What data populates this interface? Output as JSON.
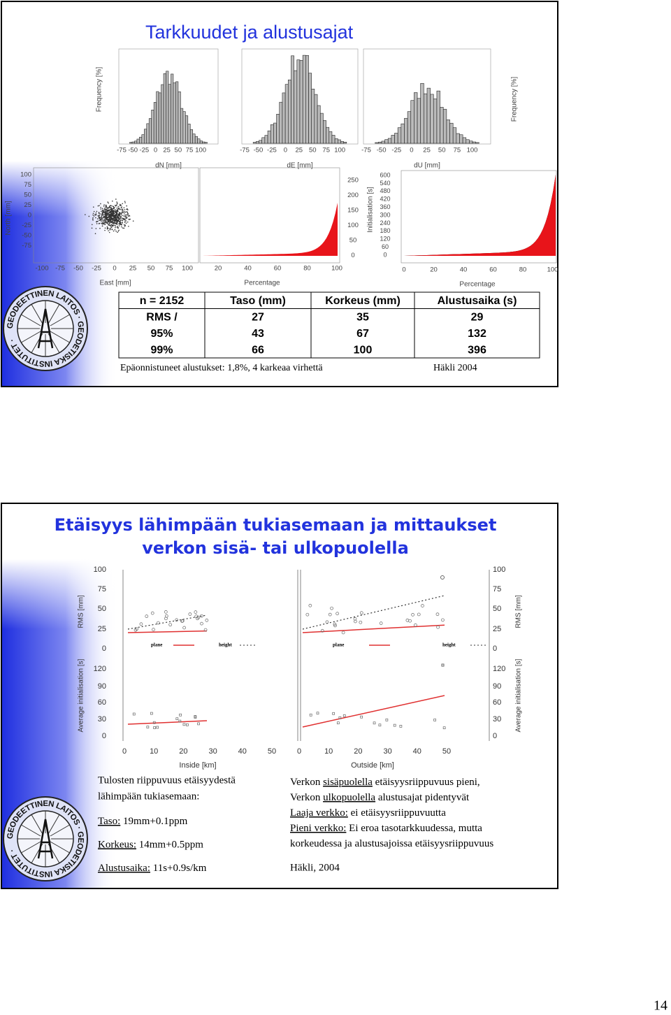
{
  "slide1": {
    "title": "Tarkkuudet ja alustusajat",
    "logo_text": "GEODEETTINEN LAITOS · GEODETISKA INSTITUTET ·",
    "histograms": {
      "x_ticks": [
        "-75",
        "-50",
        "-25",
        "0",
        "25",
        "50",
        "75",
        "100"
      ],
      "x_labels": [
        "dN [mm]",
        "dE [mm]",
        "dU [mm]"
      ],
      "y_label": "Frequency [%]"
    },
    "scatter": {
      "y_label": "North [mm]",
      "x_label": "East [mm]",
      "y_ticks": [
        "100",
        "75",
        "50",
        "25",
        "0",
        "-25",
        "-50",
        "-75"
      ],
      "x_ticks": [
        "-100",
        "-75",
        "-50",
        "-25",
        "0",
        "25",
        "50",
        "75",
        "100"
      ]
    },
    "init_left": {
      "x_label": "Percentage",
      "x_ticks": [
        "20",
        "40",
        "60",
        "80",
        "100"
      ],
      "y_label": "Initialisation [s]",
      "y_ticks": [
        "250",
        "200",
        "150",
        "100",
        "50",
        "0"
      ]
    },
    "init_right": {
      "x_label": "Percentage",
      "x_ticks": [
        "0",
        "20",
        "40",
        "60",
        "80",
        "100"
      ],
      "y_ticks": [
        "600",
        "540",
        "480",
        "420",
        "360",
        "300",
        "240",
        "180",
        "120",
        "60",
        "0"
      ]
    },
    "table": {
      "header": [
        "n = 2152",
        "Taso (mm)",
        "Korkeus (mm)",
        "Alustusaika (s)"
      ],
      "rows": [
        [
          "RMS /",
          "27",
          "35",
          "29"
        ],
        [
          "95%",
          "43",
          "67",
          "132"
        ],
        [
          "99%",
          "66",
          "100",
          "396"
        ]
      ]
    },
    "note": "Epäonnistuneet alustukset: 1,8%,  4 karkeaa virhettä",
    "source": "Häkli 2004"
  },
  "slide2": {
    "title_lines": [
      "Etäisyys lähimpään tukiasemaan ja mittaukset",
      "verkon sisä- tai ulkopuolella"
    ],
    "logo_text": "GEODEETTINEN LAITOS · GEODETISKA INSTITUTET ·",
    "figure": {
      "rms_ticks": [
        "100",
        "75",
        "50",
        "25",
        "0"
      ],
      "init_ticks": [
        "120",
        "90",
        "60",
        "30",
        "0"
      ],
      "x_ticks": [
        "0",
        "10",
        "20",
        "30",
        "40",
        "50"
      ],
      "rms_label": "RMS [mm]",
      "init_label": "Average initialisation [s]",
      "x_labels": [
        "Inside [km]",
        "Outside [km]"
      ],
      "legend": [
        "plane",
        "height"
      ]
    },
    "left_text": {
      "intro": [
        "Tulosten riippuvuus etäisyydestä",
        "lähimpään tukiasemaan:"
      ],
      "items": [
        [
          {
            "text": "Taso:",
            "underline": true
          },
          {
            "text": " 19mm+0.1ppm",
            "underline": false
          }
        ],
        [
          {
            "text": "Korkeus:",
            "underline": true
          },
          {
            "text": " 14mm+0.5ppm",
            "underline": false
          }
        ],
        [
          {
            "text": "Alustusaika:",
            "underline": true
          },
          {
            "text": " 11s+0.9s/km",
            "underline": false
          }
        ]
      ]
    },
    "right_text": {
      "lines": [
        [
          {
            "text": "Verkon ",
            "underline": false
          },
          {
            "text": "sisäpuolella",
            "underline": true
          },
          {
            "text": " etäisyysriippuvuus pieni,",
            "underline": false
          }
        ],
        [
          {
            "text": "Verkon ",
            "underline": false
          },
          {
            "text": "ulkopuolella",
            "underline": true
          },
          {
            "text": " alustusajat pidentyvät",
            "underline": false
          }
        ],
        [
          {
            "text": "Laaja verkko:",
            "underline": true
          },
          {
            "text": " ei etäisyysriippuvuutta",
            "underline": false
          }
        ],
        [
          {
            "text": "Pieni verkko:",
            "underline": true
          },
          {
            "text": " Ei eroa tasotarkkuudessa, mutta",
            "underline": false
          }
        ],
        [
          {
            "text": "korkeudessa ja alustusajoissa etäisyysriippuvuus",
            "underline": false
          }
        ]
      ],
      "source": "Häkli, 2004"
    }
  },
  "page_number": "14"
}
